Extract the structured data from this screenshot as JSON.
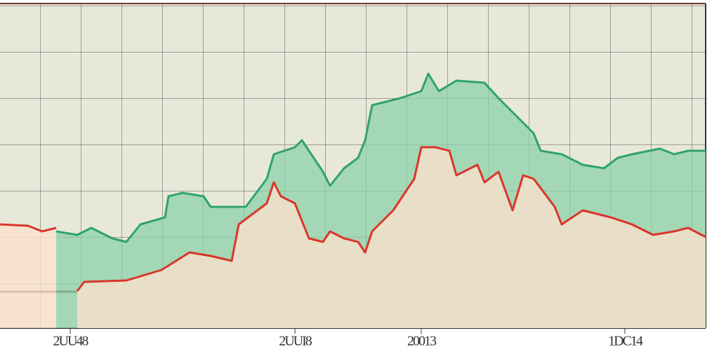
{
  "chart_data": {
    "type": "line",
    "xlim": [
      0,
      1005
    ],
    "ylim": [
      0,
      463
    ],
    "xticks": [
      {
        "value": 100,
        "label": "2UU48"
      },
      {
        "value": 420,
        "label": "2UUI8"
      },
      {
        "value": 600,
        "label": "20013"
      },
      {
        "value": 890,
        "label": "1DC14"
      }
    ],
    "series": [
      {
        "color": "#2fa36b",
        "x": [
          80,
          110,
          130,
          160,
          180,
          200,
          235,
          240,
          260,
          290,
          300,
          350,
          380,
          390,
          420,
          430,
          440,
          460,
          470,
          490,
          510,
          520,
          530,
          570,
          600,
          610,
          625,
          650,
          690,
          710,
          730,
          760,
          770,
          800,
          830,
          860,
          880,
          900,
          940,
          960,
          980,
          1005
        ],
        "values": [
          138,
          133,
          143,
          128,
          123,
          148,
          158,
          188,
          193,
          188,
          173,
          173,
          213,
          248,
          258,
          268,
          253,
          223,
          203,
          228,
          243,
          268,
          318,
          328,
          338,
          363,
          338,
          353,
          350,
          328,
          308,
          278,
          253,
          248,
          233,
          228,
          243,
          248,
          256,
          248,
          253,
          253
        ]
      },
      {
        "color": "#d9362b",
        "x": [
          0,
          40,
          60,
          80,
          90,
          110,
          120,
          180,
          230,
          270,
          300,
          330,
          340,
          360,
          380,
          390,
          400,
          420,
          440,
          460,
          470,
          490,
          510,
          520,
          530,
          560,
          590,
          600,
          620,
          640,
          650,
          680,
          690,
          710,
          730,
          745,
          760,
          790,
          800,
          830,
          870,
          900,
          930,
          960,
          980,
          1005
        ],
        "values": [
          148,
          146,
          138,
          143,
          null,
          53,
          66,
          68,
          83,
          108,
          103,
          96,
          148,
          163,
          178,
          208,
          188,
          178,
          128,
          123,
          138,
          128,
          123,
          108,
          138,
          168,
          213,
          258,
          258,
          253,
          218,
          233,
          208,
          223,
          168,
          218,
          213,
          173,
          148,
          168,
          158,
          148,
          133,
          138,
          143,
          130
        ]
      }
    ]
  }
}
